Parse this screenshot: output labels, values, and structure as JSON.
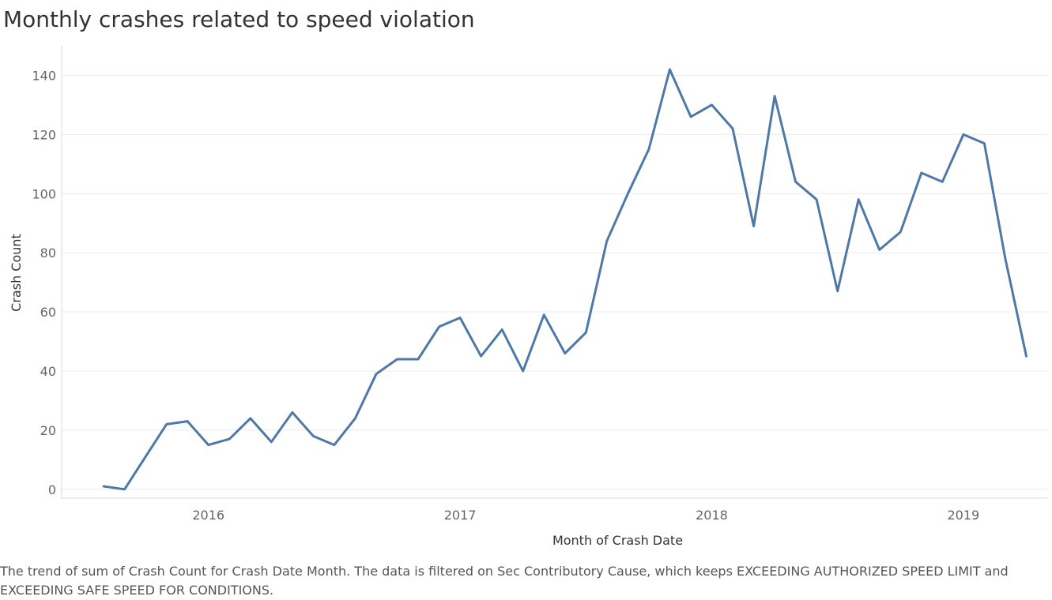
{
  "title": "Monthly crashes related to speed violation",
  "caption": "The trend of sum of Crash Count for Crash Date Month. The data is filtered on Sec Contributory Cause, which keeps EXCEEDING AUTHORIZED SPEED LIMIT and EXCEEDING SAFE SPEED FOR CONDITIONS.",
  "colors": {
    "line": "#4e79a7",
    "grid": "#ebebeb",
    "axis_text": "#666666",
    "axis_title": "#333333"
  },
  "chart_data": {
    "type": "line",
    "title": "Monthly crashes related to speed violation",
    "xlabel": "Month of Crash Date",
    "ylabel": "Crash Count",
    "x_tick_labels": [
      "2016",
      "2017",
      "2018",
      "2019"
    ],
    "y_ticks": [
      0,
      20,
      40,
      60,
      80,
      100,
      120,
      140
    ],
    "ylim": [
      -3,
      150
    ],
    "xlim": [
      "2015-06",
      "2019-05"
    ],
    "grid": "horizontal",
    "legend": "none",
    "series": [
      {
        "x": [
          "2015-08",
          "2015-09",
          "2015-10",
          "2015-11",
          "2015-12",
          "2016-01",
          "2016-02",
          "2016-03",
          "2016-04",
          "2016-05",
          "2016-06",
          "2016-07",
          "2016-08",
          "2016-09",
          "2016-10",
          "2016-11",
          "2016-12",
          "2017-01",
          "2017-02",
          "2017-03",
          "2017-04",
          "2017-05",
          "2017-06",
          "2017-07",
          "2017-08",
          "2017-09",
          "2017-10",
          "2017-11",
          "2017-12",
          "2018-01",
          "2018-02",
          "2018-03",
          "2018-04",
          "2018-05",
          "2018-06",
          "2018-07",
          "2018-08",
          "2018-09",
          "2018-10",
          "2018-11",
          "2018-12",
          "2019-01",
          "2019-02",
          "2019-03",
          "2019-04"
        ],
        "values": [
          1,
          0,
          11,
          22,
          23,
          15,
          17,
          24,
          16,
          26,
          18,
          15,
          24,
          39,
          44,
          44,
          55,
          58,
          45,
          54,
          40,
          59,
          46,
          53,
          84,
          100,
          115,
          142,
          126,
          130,
          122,
          89,
          133,
          104,
          98,
          67,
          98,
          81,
          87,
          107,
          104,
          120,
          117,
          78,
          45
        ]
      }
    ]
  }
}
